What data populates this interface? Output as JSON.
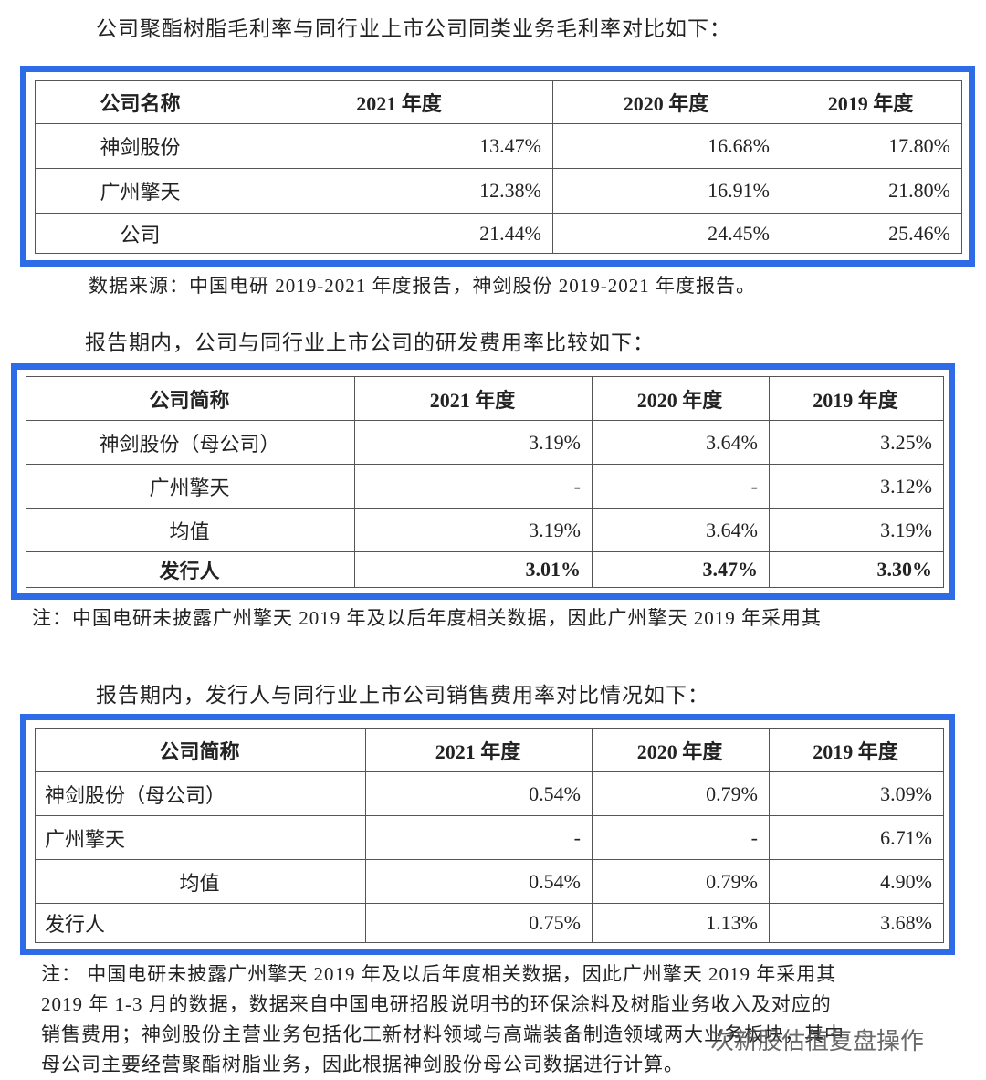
{
  "intro_1": "公司聚酯树脂毛利率与同行业上市公司同类业务毛利率对比如下：",
  "table_1": {
    "header": [
      "公司名称",
      "2021 年度",
      "2020 年度",
      "2019 年度"
    ],
    "rows": [
      [
        "神剑股份",
        "13.47%",
        "16.68%",
        "17.80%"
      ],
      [
        "广州擎天",
        "12.38%",
        "16.91%",
        "21.80%"
      ],
      [
        "公司",
        "21.44%",
        "24.45%",
        "25.46%"
      ]
    ]
  },
  "source_1": "数据来源：中国电研 2019-2021 年度报告，神剑股份 2019-2021 年度报告。",
  "intro_2": "报告期内，公司与同行业上市公司的研发费用率比较如下：",
  "table_2": {
    "header": [
      "公司简称",
      "2021 年度",
      "2020 年度",
      "2019 年度"
    ],
    "rows": [
      [
        "神剑股份（母公司）",
        "3.19%",
        "3.64%",
        "3.25%"
      ],
      [
        "广州擎天",
        "-",
        "-",
        "3.12%"
      ],
      [
        "均值",
        "3.19%",
        "3.64%",
        "3.19%"
      ],
      [
        "发行人",
        "3.01%",
        "3.47%",
        "3.30%"
      ]
    ]
  },
  "note_2": "注：中国电研未披露广州擎天 2019 年及以后年度相关数据，因此广州擎天 2019 年采用其",
  "intro_3": "报告期内，发行人与同行业上市公司销售费用率对比情况如下：",
  "table_3": {
    "header": [
      "公司简称",
      "2021 年度",
      "2020 年度",
      "2019 年度"
    ],
    "rows": [
      [
        "神剑股份（母公司）",
        "0.54%",
        "0.79%",
        "3.09%"
      ],
      [
        "广州擎天",
        "-",
        "-",
        "6.71%"
      ],
      [
        "均值",
        "0.54%",
        "0.79%",
        "4.90%"
      ],
      [
        "发行人",
        "0.75%",
        "1.13%",
        "3.68%"
      ]
    ]
  },
  "note_3": [
    "注：  中国电研未披露广州擎天 2019 年及以后年度相关数据，因此广州擎天 2019 年采用其",
    "2019 年 1-3 月的数据，数据来自中国电研招股说明书的环保涂料及树脂业务收入及对应的",
    "销售费用；神剑股份主营业务包括化工新材料领域与高端装备制造领域两大业务板块，其中",
    "母公司主要经营聚酯树脂业务，因此根据神剑股份母公司数据进行计算。"
  ],
  "watermark": "次新股估值复盘操作"
}
